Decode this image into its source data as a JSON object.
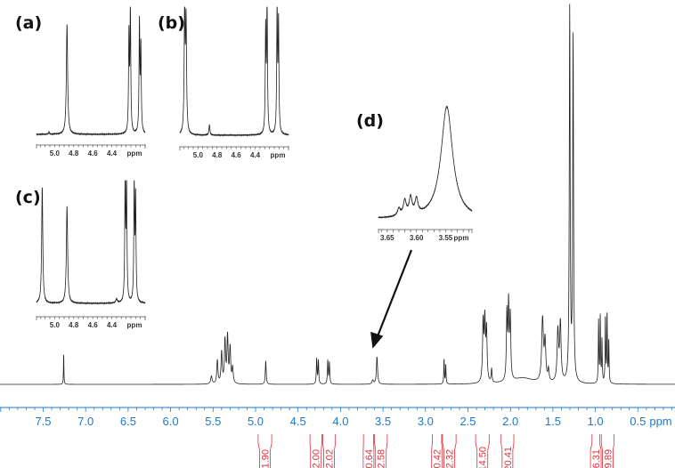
{
  "chart_data": {
    "type": "line",
    "title": "",
    "xlabel": "ppm",
    "ylabel": "",
    "xlim": [
      8.0,
      0.05
    ],
    "x_reversed": true,
    "grid": false,
    "colors": {
      "spectrum": "#222222",
      "axis": "#1f78c8",
      "integral": "#e0303a"
    },
    "x_ticks": [
      "7.5",
      "7.0",
      "6.5",
      "6.0",
      "5.5",
      "5.0",
      "4.5",
      "4.0",
      "3.5",
      "3.0",
      "2.5",
      "2.0",
      "1.5",
      "1.0",
      "0.5"
    ],
    "x_unit_label": "ppm",
    "peaks": [
      {
        "ppm": 7.26,
        "intensity": 0.08,
        "width": 0.003
      },
      {
        "ppm": 5.52,
        "intensity": 0.02,
        "width": 0.01
      },
      {
        "ppm": 5.45,
        "intensity": 0.06,
        "width": 0.008
      },
      {
        "ppm": 5.4,
        "intensity": 0.08,
        "width": 0.008
      },
      {
        "ppm": 5.36,
        "intensity": 0.11,
        "width": 0.008
      },
      {
        "ppm": 5.33,
        "intensity": 0.12,
        "width": 0.008
      },
      {
        "ppm": 5.3,
        "intensity": 0.09,
        "width": 0.008
      },
      {
        "ppm": 5.27,
        "intensity": 0.04,
        "width": 0.008
      },
      {
        "ppm": 4.88,
        "intensity": 0.06,
        "width": 0.006
      },
      {
        "ppm": 4.28,
        "intensity": 0.065,
        "width": 0.005
      },
      {
        "ppm": 4.26,
        "intensity": 0.06,
        "width": 0.005
      },
      {
        "ppm": 4.15,
        "intensity": 0.06,
        "width": 0.005
      },
      {
        "ppm": 4.13,
        "intensity": 0.055,
        "width": 0.005
      },
      {
        "ppm": 3.62,
        "intensity": 0.01,
        "width": 0.01
      },
      {
        "ppm": 3.57,
        "intensity": 0.07,
        "width": 0.008
      },
      {
        "ppm": 2.78,
        "intensity": 0.065,
        "width": 0.004
      },
      {
        "ppm": 2.76,
        "intensity": 0.05,
        "width": 0.004
      },
      {
        "ppm": 2.32,
        "intensity": 0.15,
        "width": 0.008
      },
      {
        "ppm": 2.3,
        "intensity": 0.15,
        "width": 0.008
      },
      {
        "ppm": 2.28,
        "intensity": 0.13,
        "width": 0.008
      },
      {
        "ppm": 2.22,
        "intensity": 0.035,
        "width": 0.006
      },
      {
        "ppm": 2.04,
        "intensity": 0.17,
        "width": 0.007
      },
      {
        "ppm": 2.02,
        "intensity": 0.19,
        "width": 0.007
      },
      {
        "ppm": 2.0,
        "intensity": 0.16,
        "width": 0.007
      },
      {
        "ppm": 1.85,
        "intensity": 0.015,
        "width": 0.15
      },
      {
        "ppm": 1.62,
        "intensity": 0.16,
        "width": 0.012
      },
      {
        "ppm": 1.59,
        "intensity": 0.1,
        "width": 0.01
      },
      {
        "ppm": 1.55,
        "intensity": 0.03,
        "width": 0.008
      },
      {
        "ppm": 1.44,
        "intensity": 0.13,
        "width": 0.01
      },
      {
        "ppm": 1.41,
        "intensity": 0.15,
        "width": 0.01
      },
      {
        "ppm": 1.3,
        "intensity": 0.95,
        "width": 0.006
      },
      {
        "ppm": 1.26,
        "intensity": 0.88,
        "width": 0.006
      },
      {
        "ppm": 0.96,
        "intensity": 0.16,
        "width": 0.004
      },
      {
        "ppm": 0.94,
        "intensity": 0.17,
        "width": 0.004
      },
      {
        "ppm": 0.92,
        "intensity": 0.11,
        "width": 0.004
      },
      {
        "ppm": 0.88,
        "intensity": 0.17,
        "width": 0.004
      },
      {
        "ppm": 0.86,
        "intensity": 0.18,
        "width": 0.004
      },
      {
        "ppm": 0.84,
        "intensity": 0.11,
        "width": 0.004
      }
    ],
    "integrals": [
      {
        "label": "1.90",
        "from": 4.97,
        "to": 4.81
      },
      {
        "label": "2.00",
        "from": 4.36,
        "to": 4.22
      },
      {
        "label": "2.02",
        "from": 4.21,
        "to": 4.06
      },
      {
        "label": "0.64",
        "from": 3.73,
        "to": 3.61
      },
      {
        "label": "2.58",
        "from": 3.6,
        "to": 3.45
      },
      {
        "label": "0.42",
        "from": 2.92,
        "to": 2.81
      },
      {
        "label": "2.32",
        "from": 2.8,
        "to": 2.64
      },
      {
        "label": "14.50",
        "from": 2.41,
        "to": 2.25
      },
      {
        "label": "20.41",
        "from": 2.11,
        "to": 1.96
      },
      {
        "label": "6.31",
        "from": 1.04,
        "to": 0.95
      },
      {
        "label": "9.89",
        "from": 0.93,
        "to": 0.78
      }
    ],
    "insets": [
      {
        "label": "(a)",
        "x_ticks": [
          "5.0",
          "4.8",
          "4.6",
          "4.4"
        ],
        "unit": "ppm",
        "peaks": [
          {
            "ppm": 4.87,
            "intensity": 0.85,
            "width": 0.008
          },
          {
            "ppm": 4.22,
            "intensity": 0.75,
            "width": 0.005
          },
          {
            "ppm": 4.205,
            "intensity": 0.95,
            "width": 0.005
          },
          {
            "ppm": 4.11,
            "intensity": 0.85,
            "width": 0.005
          },
          {
            "ppm": 4.095,
            "intensity": 0.65,
            "width": 0.005
          },
          {
            "ppm": 5.06,
            "intensity": 0.02,
            "width": 0.005
          }
        ]
      },
      {
        "label": "(b)",
        "x_ticks": [
          "5.0",
          "4.8",
          "4.6",
          "4.4"
        ],
        "unit": "ppm",
        "peaks": [
          {
            "ppm": 5.14,
            "intensity": 0.95,
            "width": 0.006
          },
          {
            "ppm": 5.125,
            "intensity": 0.85,
            "width": 0.006
          },
          {
            "ppm": 4.88,
            "intensity": 0.08,
            "width": 0.006
          },
          {
            "ppm": 4.29,
            "intensity": 0.8,
            "width": 0.005
          },
          {
            "ppm": 4.275,
            "intensity": 1.0,
            "width": 0.005
          },
          {
            "ppm": 4.17,
            "intensity": 0.95,
            "width": 0.005
          },
          {
            "ppm": 4.155,
            "intensity": 0.85,
            "width": 0.005
          }
        ]
      },
      {
        "label": "(c)",
        "x_ticks": [
          "5.0",
          "4.8",
          "4.6",
          "4.4"
        ],
        "unit": "ppm",
        "peaks": [
          {
            "ppm": 5.13,
            "intensity": 0.9,
            "width": 0.007
          },
          {
            "ppm": 4.87,
            "intensity": 0.75,
            "width": 0.008
          },
          {
            "ppm": 4.26,
            "intensity": 0.95,
            "width": 0.005
          },
          {
            "ppm": 4.245,
            "intensity": 0.9,
            "width": 0.005
          },
          {
            "ppm": 4.165,
            "intensity": 0.9,
            "width": 0.005
          },
          {
            "ppm": 4.15,
            "intensity": 0.8,
            "width": 0.005
          },
          {
            "ppm": 4.35,
            "intensity": 0.03,
            "width": 0.01
          }
        ]
      },
      {
        "label": "(d)",
        "x_ticks": [
          "3.65",
          "3.60",
          "3.55"
        ],
        "unit": "ppm",
        "peaks": [
          {
            "ppm": 3.548,
            "intensity": 0.9,
            "width": 0.012
          },
          {
            "ppm": 3.62,
            "intensity": 0.12,
            "width": 0.003
          },
          {
            "ppm": 3.61,
            "intensity": 0.14,
            "width": 0.003
          },
          {
            "ppm": 3.6,
            "intensity": 0.12,
            "width": 0.003
          },
          {
            "ppm": 3.63,
            "intensity": 0.06,
            "width": 0.003
          }
        ]
      }
    ]
  }
}
